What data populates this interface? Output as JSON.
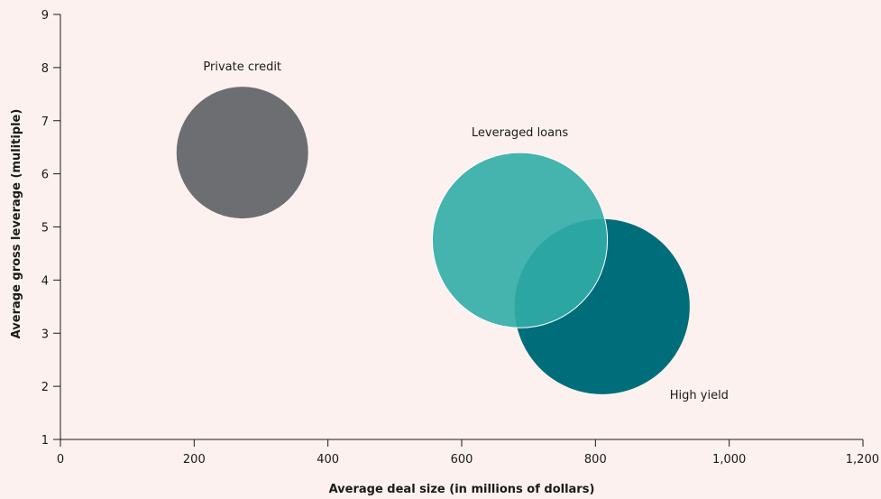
{
  "chart_data": {
    "type": "bubble",
    "xlabel": "Average deal size (in millions of dollars)",
    "ylabel": "Average gross leverage (mulitiple)",
    "xlim": [
      0,
      1200
    ],
    "ylim": [
      1,
      9
    ],
    "x_ticks": [
      0,
      200,
      400,
      600,
      800,
      1000,
      1200
    ],
    "x_tick_labels": [
      "0",
      "200",
      "400",
      "600",
      "800",
      "1,000",
      "1,200"
    ],
    "y_ticks": [
      1,
      2,
      3,
      4,
      5,
      6,
      7,
      8,
      9
    ],
    "y_tick_labels": [
      "1",
      "2",
      "3",
      "4",
      "5",
      "6",
      "7",
      "8",
      "9"
    ],
    "grid": false,
    "series": [
      {
        "name": "Private credit",
        "x": 272,
        "y": 6.4,
        "size": 1.0,
        "color": "#6d6e71"
      },
      {
        "name": "High yield",
        "x": 810,
        "y": 3.5,
        "size": 1.33,
        "color": "#006d7a"
      },
      {
        "name": "Leveraged loans",
        "x": 687,
        "y": 4.75,
        "size": 1.33,
        "color": "#31aca6"
      }
    ]
  }
}
